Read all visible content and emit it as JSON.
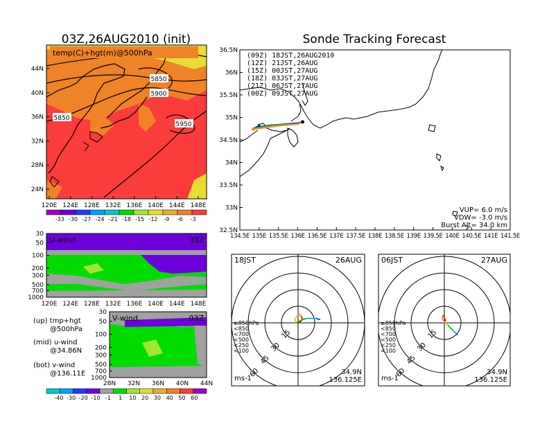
{
  "init_title": "03Z,26AUG2010 (init)",
  "forecast_title": "Sonde Tracking Forecast",
  "map500": {
    "label": "temp(C)+hgt(m)@500hPa",
    "lat_ticks": [
      "44N",
      "40N",
      "36N",
      "32N",
      "28N",
      "24N"
    ],
    "lon_ticks": [
      "120E",
      "124E",
      "128E",
      "132E",
      "136E",
      "140E",
      "144E",
      "148E"
    ],
    "contours": [
      "5850",
      "5900",
      "5850",
      "5950"
    ]
  },
  "temp_colorbar": {
    "labels": [
      "-33",
      "-30",
      "-27",
      "-24",
      "-21",
      "-18",
      "-15",
      "-12",
      "-9",
      "-6",
      "-3"
    ],
    "colors": [
      "#a000c8",
      "#6e00dc",
      "#1e3cff",
      "#00a0ff",
      "#00c8c8",
      "#00dc00",
      "#a0e632",
      "#e6dc32",
      "#e6af2d",
      "#f08228",
      "#fa3c3c"
    ]
  },
  "uwind": {
    "label": "U-wind",
    "time": "03Z",
    "p_ticks": [
      "30",
      "50",
      "100",
      "200",
      "300",
      "500",
      "700",
      "1000"
    ],
    "lon_ticks": [
      "120E",
      "124E",
      "128E",
      "132E",
      "136E",
      "140E",
      "144E",
      "148E"
    ]
  },
  "vwind": {
    "label": "V-wind",
    "time": "03Z",
    "p_ticks": [
      "30",
      "50",
      "100",
      "200",
      "300",
      "500",
      "700",
      "1000"
    ],
    "lat_ticks": [
      "28N",
      "32N",
      "36N",
      "40N",
      "44N"
    ]
  },
  "legend_notes": [
    {
      "a": "(up) tmp+hgt",
      "b": "@500hPa"
    },
    {
      "a": "(mid) u-wind",
      "b": "@34.86N"
    },
    {
      "a": "(bot) v-wind",
      "b": "@136.11E"
    }
  ],
  "wind_colorbar": {
    "labels": [
      "-40",
      "-30",
      "-20",
      "-10",
      "-1",
      "1",
      "10",
      "20",
      "30",
      "40",
      "50",
      "60"
    ],
    "colors": [
      "#00c8c8",
      "#00a0ff",
      "#1e3cff",
      "#6e00dc",
      "#a0a0a0",
      "#00dc00",
      "#a0e632",
      "#e6dc32",
      "#e6af2d",
      "#f08228",
      "#fa3c3c",
      "#a000c8"
    ]
  },
  "tracking_map": {
    "lat_ticks": [
      "36.5N",
      "36N",
      "35.5N",
      "35N",
      "34.5N",
      "34N",
      "33.5N",
      "33N",
      "32.5N"
    ],
    "lon_ticks": [
      "134.5E",
      "135E",
      "135.5E",
      "136E",
      "136.5E",
      "137E",
      "137.5E",
      "138E",
      "138.5E",
      "139E",
      "139.5E",
      "140E",
      "140.5E",
      "141E",
      "141.5E"
    ],
    "runs": [
      {
        "label": "(09Z)  18JST,26AUG2010",
        "color": "#000000"
      },
      {
        "label": "(12Z)  21JST,26AUG",
        "color": "#a000c8"
      },
      {
        "label": "(15Z)  00JST,27AUG",
        "color": "#1e3cff"
      },
      {
        "label": "(18Z)  03JST,27AUG",
        "color": "#00b400"
      },
      {
        "label": "(21Z)  06JST,27AUG",
        "color": "#c8c832"
      },
      {
        "label": "(00Z)  09JST,27AUG",
        "color": "#f08228"
      }
    ],
    "vup": "VUP=  6.0  m/s",
    "vdw": "VDW= -3.0  m/s",
    "burst": "Burst Alt= 34.0  km"
  },
  "hodo_left": {
    "time": "18JST",
    "date": "26AUG",
    "lat": "34.9N",
    "lon": "136.125E",
    "unit": "ms-1"
  },
  "hodo_right": {
    "time": "06JST",
    "date": "27AUG",
    "lat": "34.9N",
    "lon": "136.125E",
    "unit": "ms-1"
  },
  "hodo_rings": [
    "15",
    "30",
    "45",
    "60"
  ],
  "hodo_levels": [
    {
      "label": "≥850hPa",
      "color": "#e60000"
    },
    {
      "label": "<850",
      "color": "#f08228"
    },
    {
      "label": "<700",
      "color": "#e6c832"
    },
    {
      "label": "<500",
      "color": "#00c800"
    },
    {
      "label": "<250",
      "color": "#00b4dc"
    },
    {
      "label": "<100",
      "color": "#1e3cff"
    }
  ],
  "chart_data": {
    "type": "line",
    "title": "Sonde Tracking Forecast",
    "xlabel": "",
    "ylabel": "",
    "xlim": [
      134.5,
      141.5
    ],
    "ylim": [
      32.5,
      36.5
    ],
    "launch": {
      "lon": 136.125,
      "lat": 34.9
    },
    "series": [
      {
        "name": "(09Z)  18JST,26AUG2010",
        "x": [
          136.125,
          136.0,
          135.6,
          135.3,
          135.1,
          135.0
        ],
        "y": [
          34.9,
          34.87,
          34.84,
          34.82,
          34.8,
          34.8
        ]
      },
      {
        "name": "(12Z)  21JST,26AUG",
        "x": [
          136.125,
          136.0,
          135.6,
          135.3,
          135.05,
          134.95
        ],
        "y": [
          34.9,
          34.88,
          34.85,
          34.83,
          34.8,
          34.78
        ]
      },
      {
        "name": "(15Z)  00JST,27AUG",
        "x": [
          136.125,
          136.0,
          135.6,
          135.3,
          135.05,
          134.95
        ],
        "y": [
          34.9,
          34.87,
          34.85,
          34.83,
          34.8,
          34.78
        ]
      },
      {
        "name": "(18Z)  03JST,27AUG",
        "x": [
          136.125,
          136.0,
          135.6,
          135.3,
          135.05,
          134.9
        ],
        "y": [
          34.9,
          34.86,
          34.84,
          34.82,
          34.78,
          34.76
        ]
      },
      {
        "name": "(21Z)  06JST,27AUG",
        "x": [
          136.125,
          136.0,
          135.6,
          135.3,
          135.0,
          134.85
        ],
        "y": [
          34.9,
          34.85,
          34.83,
          34.8,
          34.76,
          34.74
        ]
      },
      {
        "name": "(00Z)  09JST,27AUG",
        "x": [
          136.125,
          136.0,
          135.6,
          135.3,
          135.0,
          134.85
        ],
        "y": [
          34.9,
          34.85,
          34.82,
          34.79,
          34.75,
          34.74
        ]
      }
    ]
  }
}
